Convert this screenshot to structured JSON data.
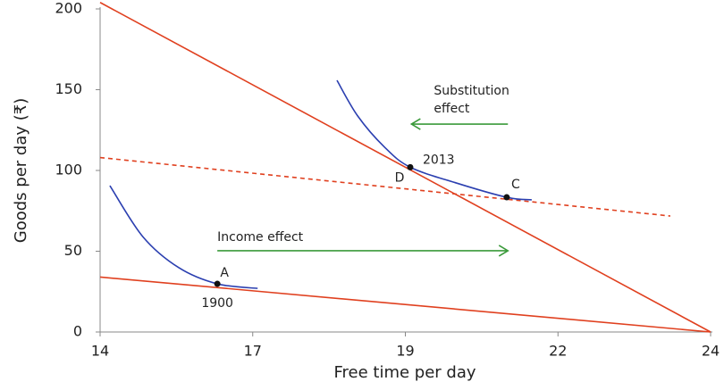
{
  "chart_data": {
    "type": "line",
    "xlabel": "Free time per day",
    "ylabel": "Goods per day (₹)",
    "xlim": [
      14,
      24
    ],
    "ylim": [
      0,
      200
    ],
    "xticks": [
      {
        "value": 14,
        "label": "14"
      },
      {
        "value": 16.5,
        "label": "17"
      },
      {
        "value": 19,
        "label": "19"
      },
      {
        "value": 21.5,
        "label": "22"
      },
      {
        "value": 24,
        "label": "24"
      }
    ],
    "yticks": [
      0,
      50,
      100,
      150,
      200
    ],
    "series": [
      {
        "kind": "straight",
        "color": "#e0401f",
        "dashed": false,
        "x": [
          14,
          24
        ],
        "values": [
          204,
          0
        ]
      },
      {
        "kind": "straight",
        "color": "#e0401f",
        "dashed": false,
        "x": [
          14,
          24
        ],
        "values": [
          34,
          0
        ]
      },
      {
        "kind": "straight",
        "color": "#e0401f",
        "dashed": true,
        "x": [
          14,
          23.34
        ],
        "values": [
          108,
          71.8
        ]
      },
      {
        "kind": "curve",
        "color": "#2b3fb0",
        "dashed": false,
        "x": [
          14.16,
          14.7,
          15.29,
          15.92,
          16.58
        ],
        "values": [
          90.6,
          59,
          39.8,
          29.8,
          27
        ]
      },
      {
        "kind": "curve",
        "color": "#2b3fb0",
        "dashed": false,
        "x": [
          17.88,
          18.22,
          18.66,
          19.08,
          19.83,
          20.66,
          21.07
        ],
        "values": [
          155.8,
          133.7,
          114.4,
          102,
          92.3,
          83.4,
          81.8
        ]
      }
    ],
    "points": [
      {
        "x": 15.92,
        "y": 29.8,
        "labels": [
          "A",
          "1900"
        ]
      },
      {
        "x": 19.08,
        "y": 102,
        "labels": [
          "2013",
          "D"
        ]
      },
      {
        "x": 20.66,
        "y": 83.4,
        "labels": [
          "C"
        ]
      }
    ],
    "arrows": [
      {
        "text": [
          "Substitution",
          "effect"
        ],
        "color": "#3a9a3a",
        "x": [
          20.68,
          19.1
        ],
        "y": [
          128.7,
          128.7
        ]
      },
      {
        "text": [
          "Income effect"
        ],
        "color": "#3a9a3a",
        "x": [
          15.92,
          20.68
        ],
        "y": [
          50.3,
          50.3
        ]
      }
    ]
  }
}
